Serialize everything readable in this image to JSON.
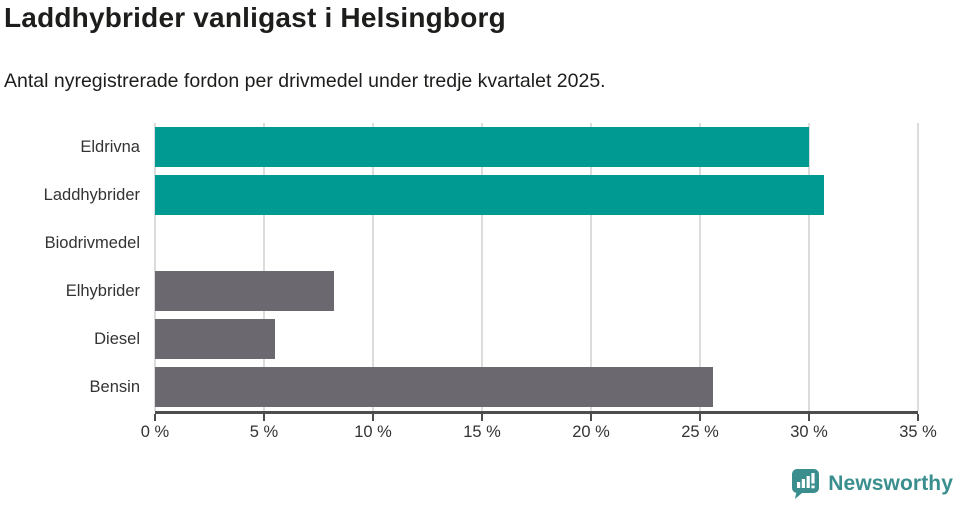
{
  "header": {
    "title": "Laddhybrider vanligast i Helsingborg",
    "subtitle": "Antal nyregistrerade fordon per drivmedel under tredje kvartalet 2025."
  },
  "chart_data": {
    "type": "bar",
    "orientation": "horizontal",
    "title": "Laddhybrider vanligast i Helsingborg",
    "subtitle": "Antal nyregistrerade fordon per drivmedel under tredje kvartalet 2025.",
    "categories": [
      "Eldrivna",
      "Laddhybrider",
      "Biodrivmedel",
      "Elhybrider",
      "Diesel",
      "Bensin"
    ],
    "values": [
      30.0,
      30.7,
      0.0,
      8.2,
      5.5,
      25.6
    ],
    "unit": "%",
    "bar_colors": [
      "#009a93",
      "#009a93",
      "#6b6870",
      "#6b6870",
      "#6b6870",
      "#6b6870"
    ],
    "xlim": [
      0,
      35
    ],
    "x_tick_values": [
      0,
      5,
      10,
      15,
      20,
      25,
      30,
      35
    ],
    "x_tick_labels": [
      "0 %",
      "5 %",
      "10 %",
      "15 %",
      "20 %",
      "25 %",
      "30 %",
      "35 %"
    ],
    "grid": true,
    "legend": false
  },
  "colors": {
    "highlight_teal": "#009a93",
    "neutral_gray": "#6b6870",
    "axis": "#4d4d4d",
    "grid": "#dcdcdc",
    "text": "#333333",
    "title_text": "#1d1d1b",
    "logo_teal": "#3a8f8e"
  },
  "footer": {
    "brand": "Newsworthy",
    "logo_icon": "bar-chart-speech-bubble-icon"
  }
}
